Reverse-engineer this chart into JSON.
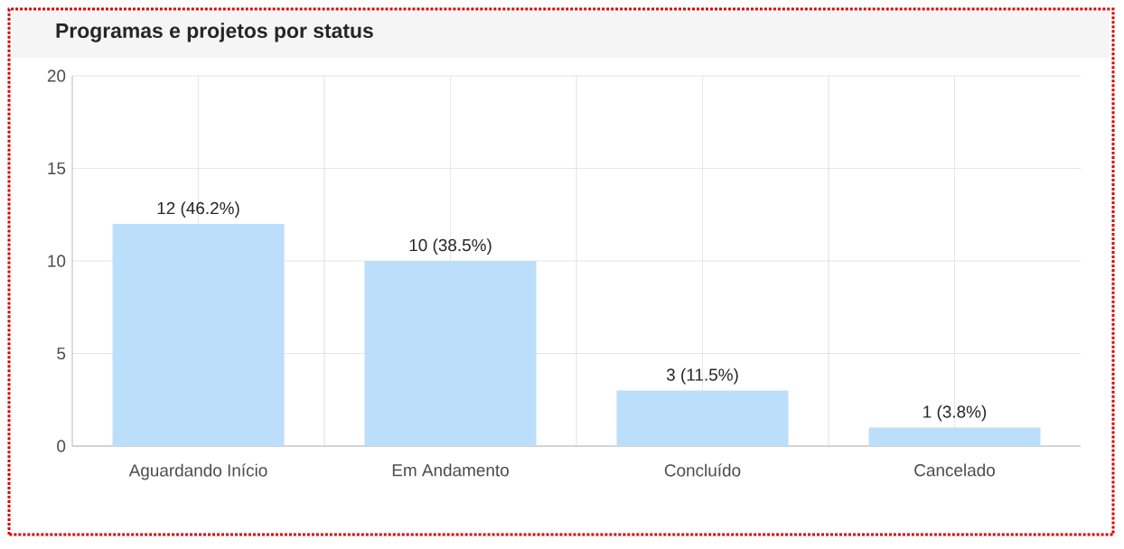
{
  "chart_data": {
    "type": "bar",
    "title": "Programas e projetos por status",
    "categories": [
      "Aguardando Início",
      "Em Andamento",
      "Concluído",
      "Cancelado"
    ],
    "values": [
      12,
      10,
      3,
      1
    ],
    "value_labels": [
      "12 (46.2%)",
      "10 (38.5%)",
      "3 (11.5%)",
      "1 (3.8%)"
    ],
    "color": "#bbdefb",
    "ylim": [
      0,
      20
    ],
    "yticks": [
      0,
      5,
      10,
      15,
      20
    ],
    "grid": true
  }
}
